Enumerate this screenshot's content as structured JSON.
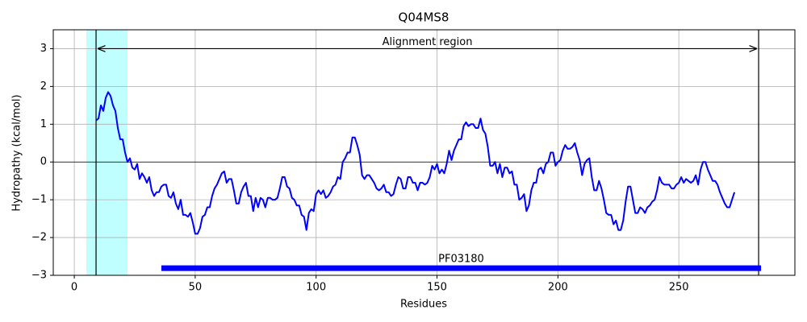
{
  "chart_data": {
    "type": "line",
    "title": "Q04MS8",
    "xlabel": "Residues",
    "ylabel": "Hydropathy (kcal/mol)",
    "xlim": [
      -8.7,
      298
    ],
    "ylim": [
      -3,
      3.5
    ],
    "xticks": [
      0,
      50,
      100,
      150,
      200,
      250
    ],
    "yticks": [
      {
        "value": -3,
        "label": "−3"
      },
      {
        "value": -2,
        "label": "−2"
      },
      {
        "value": -1,
        "label": "−1"
      },
      0,
      1,
      2,
      3
    ],
    "grid": true,
    "highlight": {
      "start": 5,
      "end": 22,
      "color": "#c0ffff"
    },
    "alignment": {
      "start": 9,
      "end": 283,
      "y": 3,
      "label": "Alignment region"
    },
    "domains": [
      {
        "name": "PF03180",
        "start": 36,
        "end": 284,
        "y": -2.81,
        "color": "#0000ff"
      }
    ],
    "x": [
      9,
      10,
      11,
      12,
      13,
      14,
      15,
      16,
      17,
      18,
      19,
      20,
      21,
      22,
      23,
      24,
      25,
      26,
      27,
      28,
      29,
      30,
      31,
      32,
      33,
      34,
      35,
      36,
      37,
      38,
      39,
      40,
      41,
      42,
      43,
      44,
      45,
      46,
      47,
      48,
      49,
      50,
      51,
      52,
      53,
      54,
      55,
      56,
      57,
      58,
      59,
      60,
      61,
      62,
      63,
      64,
      65,
      66,
      67,
      68,
      69,
      70,
      71,
      72,
      73,
      74,
      75,
      76,
      77,
      78,
      79,
      80,
      81,
      82,
      83,
      84,
      85,
      86,
      87,
      88,
      89,
      90,
      91,
      92,
      93,
      94,
      95,
      96,
      97,
      98,
      99,
      100,
      101,
      102,
      103,
      104,
      105,
      106,
      107,
      108,
      109,
      110,
      111,
      112,
      113,
      114,
      115,
      116,
      117,
      118,
      119,
      120,
      121,
      122,
      123,
      124,
      125,
      126,
      127,
      128,
      129,
      130,
      131,
      132,
      133,
      134,
      135,
      136,
      137,
      138,
      139,
      140,
      141,
      142,
      143,
      144,
      145,
      146,
      147,
      148,
      149,
      150,
      151,
      152,
      153,
      154,
      155,
      156,
      157,
      158,
      159,
      160,
      161,
      162,
      163,
      164,
      165,
      166,
      167,
      168,
      169,
      170,
      171,
      172,
      173,
      174,
      175,
      176,
      177,
      178,
      179,
      180,
      181,
      182,
      183,
      184,
      185,
      186,
      187,
      188,
      189,
      190,
      191,
      192,
      193,
      194,
      195,
      196,
      197,
      198,
      199,
      200,
      201,
      202,
      203,
      204,
      205,
      206,
      207,
      208,
      209,
      210,
      211,
      212,
      213,
      214,
      215,
      216,
      217,
      218,
      219,
      220,
      221,
      222,
      223,
      224,
      225,
      226,
      227,
      228,
      229,
      230,
      231,
      232,
      233,
      234,
      235,
      236,
      237,
      238,
      239,
      240,
      241,
      242,
      243,
      244,
      245,
      246,
      247,
      248,
      249,
      250,
      251,
      252,
      253,
      254,
      255,
      256,
      257,
      258,
      259,
      260,
      261,
      262,
      263,
      264,
      265,
      266,
      267,
      268,
      269,
      270,
      271,
      272,
      273
    ],
    "series": [
      {
        "name": "Hydropathy",
        "color": "#0000ff",
        "values": [
          1.1,
          1.15,
          1.5,
          1.35,
          1.7,
          1.85,
          1.75,
          1.5,
          1.35,
          0.9,
          0.6,
          0.6,
          0.25,
          0.0,
          0.1,
          -0.15,
          -0.2,
          -0.05,
          -0.45,
          -0.3,
          -0.4,
          -0.55,
          -0.4,
          -0.75,
          -0.9,
          -0.8,
          -0.8,
          -0.65,
          -0.6,
          -0.6,
          -0.9,
          -0.95,
          -0.8,
          -1.1,
          -1.25,
          -1.0,
          -1.4,
          -1.4,
          -1.45,
          -1.35,
          -1.6,
          -1.9,
          -1.9,
          -1.75,
          -1.45,
          -1.4,
          -1.2,
          -1.2,
          -0.9,
          -0.7,
          -0.6,
          -0.45,
          -0.3,
          -0.25,
          -0.55,
          -0.45,
          -0.45,
          -0.75,
          -1.1,
          -1.1,
          -0.8,
          -0.65,
          -0.55,
          -0.9,
          -0.9,
          -1.3,
          -0.95,
          -1.2,
          -0.95,
          -1.0,
          -1.2,
          -0.95,
          -0.95,
          -1.0,
          -1.0,
          -0.95,
          -0.7,
          -0.4,
          -0.4,
          -0.65,
          -0.7,
          -0.95,
          -1.0,
          -1.15,
          -1.15,
          -1.4,
          -1.45,
          -1.8,
          -1.35,
          -1.25,
          -1.3,
          -0.85,
          -0.75,
          -0.85,
          -0.75,
          -0.95,
          -0.9,
          -0.8,
          -0.65,
          -0.6,
          -0.4,
          -0.45,
          0.0,
          0.1,
          0.25,
          0.25,
          0.65,
          0.65,
          0.45,
          0.2,
          -0.35,
          -0.45,
          -0.35,
          -0.35,
          -0.45,
          -0.55,
          -0.7,
          -0.75,
          -0.7,
          -0.6,
          -0.8,
          -0.8,
          -0.9,
          -0.85,
          -0.6,
          -0.4,
          -0.45,
          -0.7,
          -0.7,
          -0.4,
          -0.4,
          -0.55,
          -0.55,
          -0.75,
          -0.55,
          -0.55,
          -0.6,
          -0.55,
          -0.4,
          -0.1,
          -0.2,
          -0.05,
          -0.3,
          -0.2,
          -0.3,
          -0.05,
          0.3,
          0.05,
          0.3,
          0.45,
          0.6,
          0.6,
          0.95,
          1.05,
          0.95,
          1.0,
          1.0,
          0.9,
          0.9,
          1.15,
          0.85,
          0.75,
          0.4,
          -0.1,
          -0.1,
          0.0,
          -0.3,
          -0.05,
          -0.4,
          -0.15,
          -0.15,
          -0.3,
          -0.25,
          -0.6,
          -0.6,
          -1.0,
          -0.95,
          -0.85,
          -1.3,
          -1.15,
          -0.75,
          -0.55,
          -0.55,
          -0.2,
          -0.15,
          -0.3,
          -0.05,
          0.0,
          0.25,
          0.25,
          -0.1,
          0.0,
          0.05,
          0.3,
          0.45,
          0.35,
          0.35,
          0.4,
          0.5,
          0.25,
          0.05,
          -0.35,
          -0.05,
          0.05,
          0.1,
          -0.4,
          -0.75,
          -0.75,
          -0.5,
          -0.7,
          -1.0,
          -1.35,
          -1.4,
          -1.4,
          -1.65,
          -1.55,
          -1.8,
          -1.8,
          -1.55,
          -1.05,
          -0.65,
          -0.65,
          -1.0,
          -1.35,
          -1.35,
          -1.2,
          -1.25,
          -1.35,
          -1.2,
          -1.15,
          -1.05,
          -1.0,
          -0.75,
          -0.4,
          -0.55,
          -0.6,
          -0.6,
          -0.6,
          -0.7,
          -0.7,
          -0.6,
          -0.55,
          -0.4,
          -0.55,
          -0.45,
          -0.5,
          -0.55,
          -0.5,
          -0.35,
          -0.6,
          -0.2,
          0.0,
          0.0,
          -0.2,
          -0.35,
          -0.5,
          -0.5,
          -0.6,
          -0.8,
          -0.95,
          -1.1,
          -1.2,
          -1.2,
          -1.0,
          -0.8
        ]
      }
    ]
  }
}
